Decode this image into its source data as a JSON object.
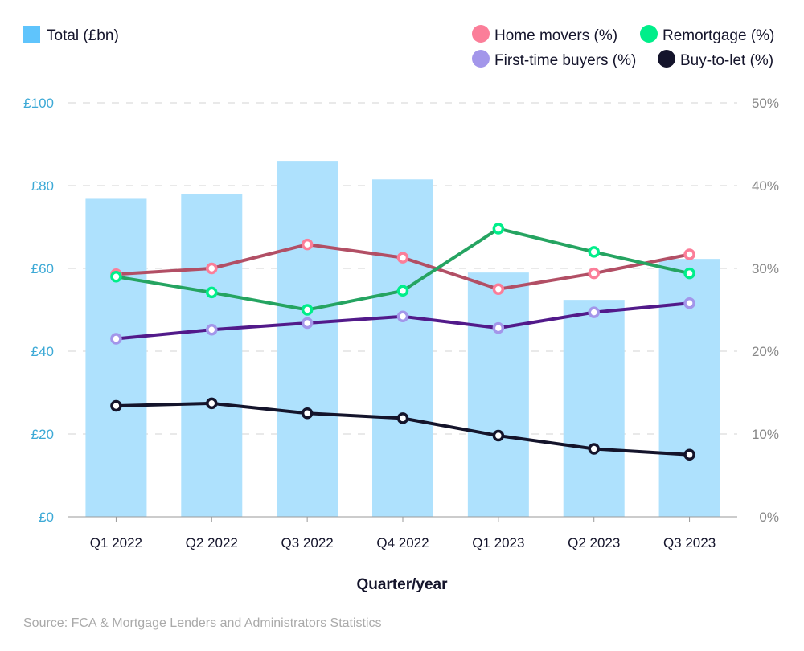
{
  "chart_data": {
    "type": "bar+line",
    "xlabel": "Quarter/year",
    "categories": [
      "Q1 2022",
      "Q2 2022",
      "Q3 2022",
      "Q4 2022",
      "Q1 2023",
      "Q2 2023",
      "Q3 2023"
    ],
    "bars": {
      "name": "Total (£bn)",
      "color": "#aee1fd",
      "legend_color": "#5fc4fc",
      "values": [
        77,
        78,
        86,
        81.5,
        59,
        52.4,
        62.3
      ]
    },
    "left_axis": {
      "range": [
        0,
        100
      ],
      "ticks": [
        "£0",
        "£20",
        "£40",
        "£60",
        "£80",
        "£100"
      ],
      "color": "#3ca9d6"
    },
    "right_axis": {
      "range": [
        0,
        50
      ],
      "ticks": [
        "0%",
        "10%",
        "20%",
        "30%",
        "40%",
        "50%"
      ],
      "color": "#888888"
    },
    "series": [
      {
        "name": "Home movers (%)",
        "line_color": "#b24f65",
        "marker_color": "#fb7e99",
        "values": [
          29.3,
          30.0,
          32.9,
          31.3,
          27.5,
          29.4,
          31.7
        ]
      },
      {
        "name": "Remortgage (%)",
        "line_color": "#25a461",
        "marker_color": "#00ee8a",
        "values": [
          29.0,
          27.1,
          25.0,
          27.3,
          34.8,
          32.0,
          29.4
        ]
      },
      {
        "name": "First-time buyers (%)",
        "line_color": "#521a8a",
        "marker_color": "#a396ea",
        "values": [
          21.5,
          22.6,
          23.4,
          24.2,
          22.8,
          24.7,
          25.8
        ]
      },
      {
        "name": "Buy-to-let (%)",
        "line_color": "#14142b",
        "marker_color": "#14142b",
        "values": [
          13.4,
          13.7,
          12.5,
          11.9,
          9.8,
          8.2,
          7.5
        ]
      }
    ],
    "grid": true,
    "legend_placement": "top"
  },
  "source": "Source: FCA & Mortgage Lenders and Administrators Statistics"
}
